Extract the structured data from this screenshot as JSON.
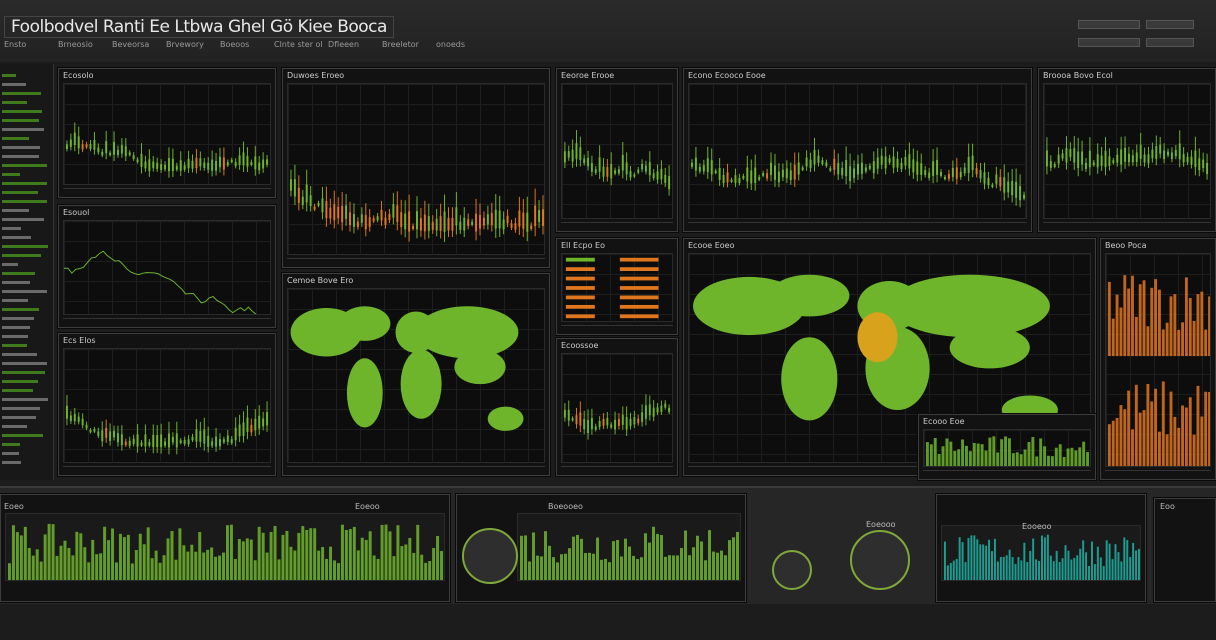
{
  "header": {
    "title": "Foolbodvel Ranti Ee Ltbwa Ghel Gö Kiee Booca",
    "menu": [
      "Ensto",
      "Brneosio",
      "Beveorsa",
      "Brvewory",
      "Boeoos",
      "Clnte ster ol",
      "Dfleeen",
      "Breeletor",
      "onoeds"
    ]
  },
  "panels": [
    {
      "id": "p1",
      "title": "Ecosolo"
    },
    {
      "id": "p2",
      "title": "Esouol"
    },
    {
      "id": "p3",
      "title": "Ecs Elos"
    },
    {
      "id": "p4",
      "title": "Duwoes Eroeo"
    },
    {
      "id": "p5",
      "title": "Cemoe Bove Ero"
    },
    {
      "id": "p6",
      "title": "Eeoroe Erooe"
    },
    {
      "id": "p7",
      "title": "Ell Ecpo Eo"
    },
    {
      "id": "p8",
      "title": "Ecoossoe"
    },
    {
      "id": "p9",
      "title": "Econo Ecooco Eooe"
    },
    {
      "id": "p10",
      "title": "Ecooe Eoeo"
    },
    {
      "id": "p11",
      "title": "Broooa Bovo Ecol"
    },
    {
      "id": "p12",
      "title": "Beoo Poca"
    },
    {
      "id": "p13",
      "title": "Ecooo Eoe"
    }
  ],
  "bottom": {
    "labels": [
      "Eoeo",
      "Eoeoo",
      "Boeooeo",
      "Eoeooo",
      "Eooeoo",
      "Eoo"
    ]
  },
  "colors": {
    "green": "#6fb52c",
    "orange": "#e0761e",
    "teal": "#1fb5a8",
    "map_yellow": "#d9a21c"
  }
}
